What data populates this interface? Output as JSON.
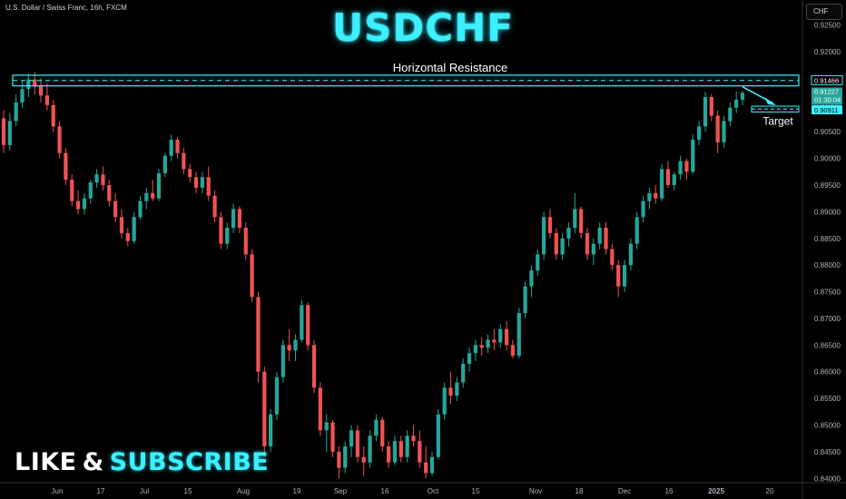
{
  "header": {
    "symbol_title": "U.S. Dollar / Swiss Franc, 16h, FXCM",
    "big_title": "USDCHF",
    "currency_button": "CHF"
  },
  "promo": {
    "like": "LIKE",
    "amp": "&",
    "subscribe": "SUBSCRIBE"
  },
  "colors": {
    "up": "#26a69a",
    "down": "#ef5350",
    "accent": "#3cf0ff",
    "price_label": "#26a69a",
    "background": "#000000"
  },
  "chart_data": {
    "type": "candlestick",
    "y_ticks": [
      "0.92500",
      "0.92000",
      "0.91500",
      "0.91000",
      "0.90500",
      "0.90000",
      "0.89500",
      "0.89000",
      "0.88500",
      "0.88000",
      "0.87500",
      "0.87000",
      "0.86500",
      "0.86000",
      "0.85500",
      "0.85000",
      "0.84500",
      "0.84000"
    ],
    "x_ticks": [
      "Jun",
      "17",
      "Jul",
      "15",
      "Aug",
      "19",
      "Sep",
      "16",
      "Oct",
      "15",
      "Nov",
      "18",
      "Dec",
      "16",
      "2025",
      "20"
    ],
    "ylim": [
      0.8392,
      0.9297
    ],
    "annotations": {
      "resistance_label": "Horizontal Resistance",
      "resistance_low": 0.9136,
      "resistance_high": 0.9156,
      "resistance_price": "0.91466",
      "target_label": "Target",
      "target_low": 0.9087,
      "target_high": 0.9098,
      "target_price": "0.90911",
      "current_price": "0.91227",
      "countdown": "01:30:04"
    },
    "candles": [
      {
        "o": 0.9075,
        "h": 0.909,
        "l": 0.901,
        "c": 0.9025
      },
      {
        "o": 0.9025,
        "h": 0.9085,
        "l": 0.9015,
        "c": 0.907
      },
      {
        "o": 0.907,
        "h": 0.912,
        "l": 0.906,
        "c": 0.9105
      },
      {
        "o": 0.9105,
        "h": 0.9145,
        "l": 0.9095,
        "c": 0.913
      },
      {
        "o": 0.913,
        "h": 0.916,
        "l": 0.9115,
        "c": 0.9148
      },
      {
        "o": 0.9148,
        "h": 0.9162,
        "l": 0.912,
        "c": 0.9135
      },
      {
        "o": 0.9135,
        "h": 0.915,
        "l": 0.9105,
        "c": 0.9118
      },
      {
        "o": 0.9118,
        "h": 0.914,
        "l": 0.909,
        "c": 0.91
      },
      {
        "o": 0.91,
        "h": 0.911,
        "l": 0.905,
        "c": 0.906
      },
      {
        "o": 0.906,
        "h": 0.907,
        "l": 0.9,
        "c": 0.901
      },
      {
        "o": 0.901,
        "h": 0.902,
        "l": 0.895,
        "c": 0.896
      },
      {
        "o": 0.896,
        "h": 0.897,
        "l": 0.891,
        "c": 0.892
      },
      {
        "o": 0.892,
        "h": 0.894,
        "l": 0.8895,
        "c": 0.8905
      },
      {
        "o": 0.8905,
        "h": 0.8935,
        "l": 0.8895,
        "c": 0.8925
      },
      {
        "o": 0.8925,
        "h": 0.896,
        "l": 0.8915,
        "c": 0.8955
      },
      {
        "o": 0.8955,
        "h": 0.898,
        "l": 0.8945,
        "c": 0.897
      },
      {
        "o": 0.897,
        "h": 0.8985,
        "l": 0.894,
        "c": 0.895
      },
      {
        "o": 0.895,
        "h": 0.896,
        "l": 0.891,
        "c": 0.892
      },
      {
        "o": 0.892,
        "h": 0.8935,
        "l": 0.888,
        "c": 0.889
      },
      {
        "o": 0.889,
        "h": 0.8905,
        "l": 0.885,
        "c": 0.886
      },
      {
        "o": 0.886,
        "h": 0.887,
        "l": 0.8835,
        "c": 0.8845
      },
      {
        "o": 0.8845,
        "h": 0.89,
        "l": 0.884,
        "c": 0.889
      },
      {
        "o": 0.889,
        "h": 0.893,
        "l": 0.8885,
        "c": 0.892
      },
      {
        "o": 0.892,
        "h": 0.8945,
        "l": 0.8905,
        "c": 0.8935
      },
      {
        "o": 0.8935,
        "h": 0.896,
        "l": 0.892,
        "c": 0.8925
      },
      {
        "o": 0.8925,
        "h": 0.898,
        "l": 0.892,
        "c": 0.8972
      },
      {
        "o": 0.8972,
        "h": 0.901,
        "l": 0.8965,
        "c": 0.9005
      },
      {
        "o": 0.9005,
        "h": 0.9045,
        "l": 0.8995,
        "c": 0.9035
      },
      {
        "o": 0.9035,
        "h": 0.904,
        "l": 0.9,
        "c": 0.901
      },
      {
        "o": 0.901,
        "h": 0.902,
        "l": 0.897,
        "c": 0.898
      },
      {
        "o": 0.898,
        "h": 0.899,
        "l": 0.8955,
        "c": 0.8965
      },
      {
        "o": 0.8965,
        "h": 0.8975,
        "l": 0.8935,
        "c": 0.8945
      },
      {
        "o": 0.8945,
        "h": 0.8975,
        "l": 0.8935,
        "c": 0.8965
      },
      {
        "o": 0.8965,
        "h": 0.8985,
        "l": 0.892,
        "c": 0.893
      },
      {
        "o": 0.893,
        "h": 0.894,
        "l": 0.888,
        "c": 0.889
      },
      {
        "o": 0.889,
        "h": 0.89,
        "l": 0.883,
        "c": 0.884
      },
      {
        "o": 0.884,
        "h": 0.888,
        "l": 0.883,
        "c": 0.887
      },
      {
        "o": 0.887,
        "h": 0.8915,
        "l": 0.886,
        "c": 0.8905
      },
      {
        "o": 0.8905,
        "h": 0.891,
        "l": 0.886,
        "c": 0.887
      },
      {
        "o": 0.887,
        "h": 0.888,
        "l": 0.881,
        "c": 0.882
      },
      {
        "o": 0.882,
        "h": 0.883,
        "l": 0.873,
        "c": 0.874
      },
      {
        "o": 0.874,
        "h": 0.875,
        "l": 0.858,
        "c": 0.86
      },
      {
        "o": 0.86,
        "h": 0.861,
        "l": 0.844,
        "c": 0.846
      },
      {
        "o": 0.846,
        "h": 0.853,
        "l": 0.845,
        "c": 0.852
      },
      {
        "o": 0.852,
        "h": 0.86,
        "l": 0.851,
        "c": 0.859
      },
      {
        "o": 0.859,
        "h": 0.866,
        "l": 0.858,
        "c": 0.865
      },
      {
        "o": 0.865,
        "h": 0.868,
        "l": 0.862,
        "c": 0.864
      },
      {
        "o": 0.864,
        "h": 0.867,
        "l": 0.862,
        "c": 0.866
      },
      {
        "o": 0.866,
        "h": 0.8735,
        "l": 0.8655,
        "c": 0.8725
      },
      {
        "o": 0.8725,
        "h": 0.873,
        "l": 0.864,
        "c": 0.865
      },
      {
        "o": 0.865,
        "h": 0.866,
        "l": 0.856,
        "c": 0.857
      },
      {
        "o": 0.857,
        "h": 0.858,
        "l": 0.848,
        "c": 0.849
      },
      {
        "o": 0.849,
        "h": 0.852,
        "l": 0.845,
        "c": 0.8505
      },
      {
        "o": 0.8505,
        "h": 0.851,
        "l": 0.844,
        "c": 0.845
      },
      {
        "o": 0.845,
        "h": 0.846,
        "l": 0.84,
        "c": 0.842
      },
      {
        "o": 0.842,
        "h": 0.847,
        "l": 0.841,
        "c": 0.846
      },
      {
        "o": 0.846,
        "h": 0.85,
        "l": 0.844,
        "c": 0.849
      },
      {
        "o": 0.849,
        "h": 0.85,
        "l": 0.843,
        "c": 0.844
      },
      {
        "o": 0.844,
        "h": 0.846,
        "l": 0.8405,
        "c": 0.843
      },
      {
        "o": 0.843,
        "h": 0.849,
        "l": 0.842,
        "c": 0.848
      },
      {
        "o": 0.848,
        "h": 0.852,
        "l": 0.847,
        "c": 0.851
      },
      {
        "o": 0.851,
        "h": 0.8515,
        "l": 0.845,
        "c": 0.846
      },
      {
        "o": 0.846,
        "h": 0.847,
        "l": 0.842,
        "c": 0.843
      },
      {
        "o": 0.843,
        "h": 0.848,
        "l": 0.8425,
        "c": 0.847
      },
      {
        "o": 0.847,
        "h": 0.848,
        "l": 0.843,
        "c": 0.844
      },
      {
        "o": 0.844,
        "h": 0.849,
        "l": 0.843,
        "c": 0.848
      },
      {
        "o": 0.848,
        "h": 0.85,
        "l": 0.846,
        "c": 0.847
      },
      {
        "o": 0.847,
        "h": 0.849,
        "l": 0.842,
        "c": 0.843
      },
      {
        "o": 0.843,
        "h": 0.846,
        "l": 0.84,
        "c": 0.841
      },
      {
        "o": 0.841,
        "h": 0.845,
        "l": 0.8405,
        "c": 0.844
      },
      {
        "o": 0.844,
        "h": 0.853,
        "l": 0.8435,
        "c": 0.852
      },
      {
        "o": 0.852,
        "h": 0.858,
        "l": 0.851,
        "c": 0.857
      },
      {
        "o": 0.857,
        "h": 0.86,
        "l": 0.854,
        "c": 0.8555
      },
      {
        "o": 0.8555,
        "h": 0.859,
        "l": 0.8545,
        "c": 0.858
      },
      {
        "o": 0.858,
        "h": 0.8625,
        "l": 0.857,
        "c": 0.8615
      },
      {
        "o": 0.8615,
        "h": 0.8645,
        "l": 0.86,
        "c": 0.8635
      },
      {
        "o": 0.8635,
        "h": 0.866,
        "l": 0.862,
        "c": 0.865
      },
      {
        "o": 0.865,
        "h": 0.8665,
        "l": 0.863,
        "c": 0.8645
      },
      {
        "o": 0.8645,
        "h": 0.867,
        "l": 0.8635,
        "c": 0.866
      },
      {
        "o": 0.866,
        "h": 0.868,
        "l": 0.864,
        "c": 0.8655
      },
      {
        "o": 0.8655,
        "h": 0.869,
        "l": 0.8645,
        "c": 0.868
      },
      {
        "o": 0.868,
        "h": 0.8695,
        "l": 0.864,
        "c": 0.865
      },
      {
        "o": 0.865,
        "h": 0.866,
        "l": 0.8625,
        "c": 0.863
      },
      {
        "o": 0.863,
        "h": 0.872,
        "l": 0.8625,
        "c": 0.871
      },
      {
        "o": 0.871,
        "h": 0.877,
        "l": 0.87,
        "c": 0.876
      },
      {
        "o": 0.876,
        "h": 0.88,
        "l": 0.874,
        "c": 0.879
      },
      {
        "o": 0.879,
        "h": 0.883,
        "l": 0.878,
        "c": 0.882
      },
      {
        "o": 0.882,
        "h": 0.89,
        "l": 0.881,
        "c": 0.889
      },
      {
        "o": 0.889,
        "h": 0.8905,
        "l": 0.885,
        "c": 0.886
      },
      {
        "o": 0.886,
        "h": 0.887,
        "l": 0.881,
        "c": 0.882
      },
      {
        "o": 0.882,
        "h": 0.886,
        "l": 0.881,
        "c": 0.885
      },
      {
        "o": 0.885,
        "h": 0.888,
        "l": 0.8835,
        "c": 0.887
      },
      {
        "o": 0.887,
        "h": 0.8935,
        "l": 0.886,
        "c": 0.8905
      },
      {
        "o": 0.8905,
        "h": 0.891,
        "l": 0.885,
        "c": 0.886
      },
      {
        "o": 0.886,
        "h": 0.887,
        "l": 0.881,
        "c": 0.882
      },
      {
        "o": 0.882,
        "h": 0.885,
        "l": 0.88,
        "c": 0.884
      },
      {
        "o": 0.884,
        "h": 0.888,
        "l": 0.883,
        "c": 0.887
      },
      {
        "o": 0.887,
        "h": 0.888,
        "l": 0.882,
        "c": 0.883
      },
      {
        "o": 0.883,
        "h": 0.884,
        "l": 0.879,
        "c": 0.88
      },
      {
        "o": 0.88,
        "h": 0.881,
        "l": 0.874,
        "c": 0.876
      },
      {
        "o": 0.876,
        "h": 0.881,
        "l": 0.875,
        "c": 0.88
      },
      {
        "o": 0.88,
        "h": 0.885,
        "l": 0.879,
        "c": 0.884
      },
      {
        "o": 0.884,
        "h": 0.89,
        "l": 0.883,
        "c": 0.889
      },
      {
        "o": 0.889,
        "h": 0.893,
        "l": 0.888,
        "c": 0.892
      },
      {
        "o": 0.892,
        "h": 0.8945,
        "l": 0.8905,
        "c": 0.8935
      },
      {
        "o": 0.8935,
        "h": 0.895,
        "l": 0.8915,
        "c": 0.8925
      },
      {
        "o": 0.8925,
        "h": 0.899,
        "l": 0.892,
        "c": 0.898
      },
      {
        "o": 0.898,
        "h": 0.8995,
        "l": 0.8945,
        "c": 0.895
      },
      {
        "o": 0.895,
        "h": 0.8975,
        "l": 0.894,
        "c": 0.897
      },
      {
        "o": 0.897,
        "h": 0.9005,
        "l": 0.896,
        "c": 0.8995
      },
      {
        "o": 0.8995,
        "h": 0.9,
        "l": 0.896,
        "c": 0.8975
      },
      {
        "o": 0.8975,
        "h": 0.9045,
        "l": 0.897,
        "c": 0.9035
      },
      {
        "o": 0.9035,
        "h": 0.907,
        "l": 0.9025,
        "c": 0.906
      },
      {
        "o": 0.906,
        "h": 0.9125,
        "l": 0.905,
        "c": 0.9115
      },
      {
        "o": 0.9115,
        "h": 0.912,
        "l": 0.907,
        "c": 0.908
      },
      {
        "o": 0.908,
        "h": 0.909,
        "l": 0.901,
        "c": 0.903
      },
      {
        "o": 0.903,
        "h": 0.908,
        "l": 0.902,
        "c": 0.907
      },
      {
        "o": 0.907,
        "h": 0.9105,
        "l": 0.906,
        "c": 0.9095
      },
      {
        "o": 0.9095,
        "h": 0.9125,
        "l": 0.9085,
        "c": 0.911
      },
      {
        "o": 0.911,
        "h": 0.9127,
        "l": 0.91,
        "c": 0.9123
      }
    ]
  }
}
